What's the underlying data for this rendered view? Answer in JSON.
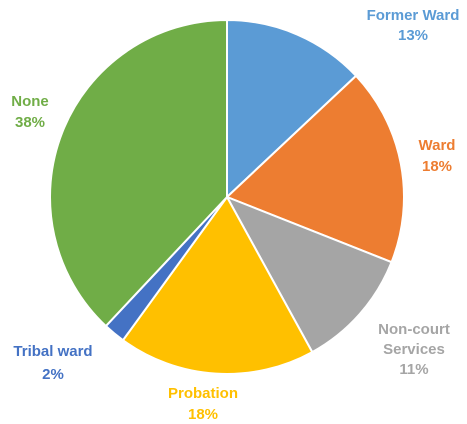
{
  "chart_data": {
    "type": "pie",
    "title": "",
    "legend": "none",
    "slices": [
      {
        "label": "Former Ward",
        "label_lines": [
          "Former Ward"
        ],
        "value_label": "13%",
        "value": 13,
        "color": "#5B9BD5"
      },
      {
        "label": "Ward",
        "label_lines": [
          "Ward"
        ],
        "value_label": "18%",
        "value": 18,
        "color": "#ED7D31"
      },
      {
        "label": "Non-court Services",
        "label_lines": [
          "Non-court",
          "Services"
        ],
        "value_label": "11%",
        "value": 11,
        "color": "#A5A5A5"
      },
      {
        "label": "Probation",
        "label_lines": [
          "Probation"
        ],
        "value_label": "18%",
        "value": 18,
        "color": "#FFC000"
      },
      {
        "label": "Tribal ward",
        "label_lines": [
          "Tribal ward"
        ],
        "value_label": "2%",
        "value": 2,
        "color": "#4472C4"
      },
      {
        "label": "None",
        "label_lines": [
          "None"
        ],
        "value_label": "38%",
        "value": 38,
        "color": "#70AD47"
      }
    ]
  }
}
